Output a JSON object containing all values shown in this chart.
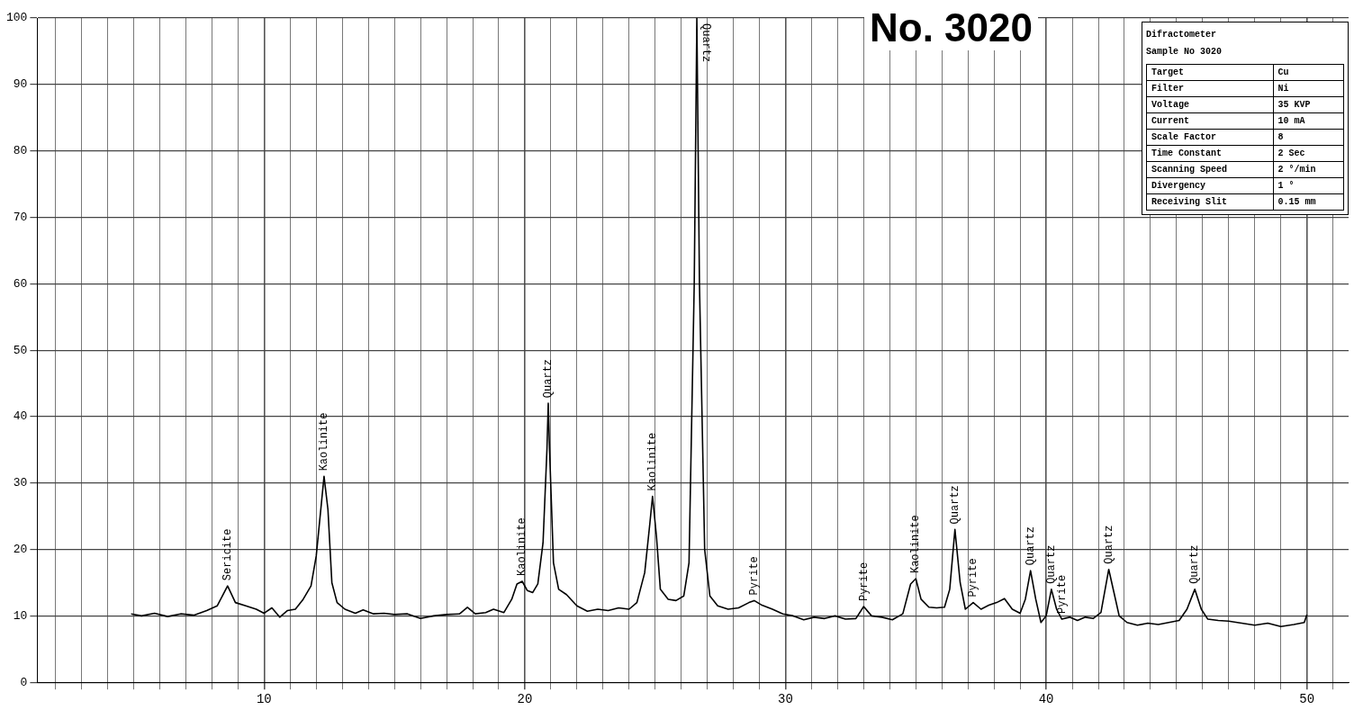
{
  "chart_data": {
    "type": "line",
    "title": "No. 3020",
    "x": [
      4.9,
      5.3,
      5.8,
      6.3,
      6.8,
      7.3,
      7.8,
      8.2,
      8.6,
      8.9,
      9.3,
      9.7,
      10.0,
      10.3,
      10.6,
      10.9,
      11.2,
      11.5,
      11.8,
      12.0,
      12.2,
      12.3,
      12.45,
      12.6,
      12.8,
      13.1,
      13.5,
      13.8,
      14.2,
      14.6,
      15.0,
      15.5,
      16.0,
      16.5,
      17.0,
      17.5,
      17.8,
      18.1,
      18.5,
      18.8,
      19.2,
      19.5,
      19.7,
      19.9,
      20.1,
      20.3,
      20.5,
      20.7,
      20.85,
      20.9,
      20.95,
      21.1,
      21.3,
      21.6,
      22.0,
      22.4,
      22.8,
      23.2,
      23.6,
      24.0,
      24.3,
      24.6,
      24.8,
      24.9,
      25.05,
      25.2,
      25.5,
      25.8,
      26.1,
      26.3,
      26.5,
      26.6,
      26.7,
      26.9,
      27.1,
      27.4,
      27.8,
      28.2,
      28.6,
      28.8,
      29.1,
      29.5,
      29.9,
      30.3,
      30.7,
      31.1,
      31.5,
      31.9,
      32.3,
      32.7,
      33.0,
      33.3,
      33.7,
      34.1,
      34.5,
      34.8,
      35.0,
      35.2,
      35.5,
      35.8,
      36.1,
      36.3,
      36.5,
      36.7,
      36.9,
      37.2,
      37.5,
      37.8,
      38.1,
      38.4,
      38.7,
      39.0,
      39.2,
      39.4,
      39.6,
      39.8,
      40.0,
      40.2,
      40.4,
      40.6,
      40.9,
      41.2,
      41.5,
      41.8,
      42.1,
      42.4,
      42.6,
      42.8,
      43.1,
      43.5,
      43.9,
      44.3,
      44.7,
      45.1,
      45.4,
      45.7,
      45.95,
      46.2,
      46.6,
      47.0,
      47.5,
      48.0,
      48.5,
      49.0,
      49.5,
      49.9,
      50.0
    ],
    "series": [
      {
        "color": "#000000",
        "values": [
          10.3,
          10.0,
          10.4,
          9.9,
          10.3,
          10.1,
          10.8,
          11.5,
          14.5,
          12.0,
          11.5,
          11.0,
          10.4,
          11.2,
          9.8,
          10.8,
          11.0,
          12.5,
          14.5,
          19.0,
          27.0,
          31.0,
          26.0,
          15.0,
          12.0,
          11.0,
          10.4,
          10.9,
          10.3,
          10.4,
          10.2,
          10.3,
          9.6,
          10.0,
          10.2,
          10.3,
          11.3,
          10.3,
          10.5,
          11.0,
          10.5,
          12.5,
          14.8,
          15.2,
          13.8,
          13.5,
          14.8,
          21.0,
          35.0,
          42.0,
          35.0,
          18.0,
          14.0,
          13.2,
          11.5,
          10.7,
          11.0,
          10.8,
          11.2,
          11.0,
          12.0,
          16.5,
          24.0,
          28.0,
          22.0,
          14.0,
          12.5,
          12.3,
          13.0,
          18.0,
          60.0,
          100,
          60.0,
          20.0,
          13.0,
          11.5,
          11.0,
          11.2,
          12.0,
          12.3,
          11.6,
          11.0,
          10.3,
          10.0,
          9.4,
          9.8,
          9.6,
          10.0,
          9.5,
          9.6,
          11.4,
          10.0,
          9.8,
          9.4,
          10.3,
          14.8,
          15.6,
          12.5,
          11.3,
          11.2,
          11.3,
          14.0,
          23.0,
          15.0,
          11.0,
          12.0,
          11.0,
          11.6,
          12.0,
          12.6,
          11.0,
          10.4,
          12.5,
          16.8,
          12.5,
          9.0,
          10.0,
          14.0,
          11.0,
          9.5,
          9.8,
          9.3,
          9.8,
          9.6,
          10.5,
          17.0,
          13.5,
          10.0,
          9.0,
          8.6,
          8.9,
          8.7,
          9.0,
          9.3,
          11.0,
          14.0,
          11.0,
          9.5,
          9.3,
          9.2,
          8.9,
          8.6,
          8.9,
          8.4,
          8.7,
          9.0,
          10.2
        ]
      }
    ],
    "xlim": [
      1.3,
      51.6
    ],
    "xticks": [
      {
        "value": 2,
        "label": null
      },
      {
        "value": 3,
        "label": null
      },
      {
        "value": 4,
        "label": null
      },
      {
        "value": 5,
        "label": null
      },
      {
        "value": 6,
        "label": null
      },
      {
        "value": 7,
        "label": null
      },
      {
        "value": 8,
        "label": null
      },
      {
        "value": 9,
        "label": null
      },
      10,
      {
        "value": 11,
        "label": null
      },
      {
        "value": 12,
        "label": null
      },
      {
        "value": 13,
        "label": null
      },
      {
        "value": 14,
        "label": null
      },
      {
        "value": 15,
        "label": null
      },
      {
        "value": 16,
        "label": null
      },
      {
        "value": 17,
        "label": null
      },
      {
        "value": 18,
        "label": null
      },
      {
        "value": 19,
        "label": null
      },
      20,
      {
        "value": 21,
        "label": null
      },
      {
        "value": 22,
        "label": null
      },
      {
        "value": 23,
        "label": null
      },
      {
        "value": 24,
        "label": null
      },
      {
        "value": 25,
        "label": null
      },
      {
        "value": 26,
        "label": null
      },
      {
        "value": 27,
        "label": null
      },
      {
        "value": 28,
        "label": null
      },
      {
        "value": 29,
        "label": null
      },
      30,
      {
        "value": 31,
        "label": null
      },
      {
        "value": 32,
        "label": null
      },
      {
        "value": 33,
        "label": null
      },
      {
        "value": 34,
        "label": null
      },
      {
        "value": 35,
        "label": null
      },
      {
        "value": 36,
        "label": null
      },
      {
        "value": 37,
        "label": null
      },
      {
        "value": 38,
        "label": null
      },
      {
        "value": 39,
        "label": null
      },
      40,
      {
        "value": 41,
        "label": null
      },
      {
        "value": 42,
        "label": null
      },
      {
        "value": 43,
        "label": null
      },
      {
        "value": 44,
        "label": null
      },
      {
        "value": 45,
        "label": null
      },
      {
        "value": 46,
        "label": null
      },
      {
        "value": 47,
        "label": null
      },
      {
        "value": 48,
        "label": null
      },
      {
        "value": 49,
        "label": null
      },
      50,
      {
        "value": 51,
        "label": null
      }
    ],
    "ylim": [
      0,
      100
    ],
    "yticks": [
      0,
      10,
      20,
      30,
      40,
      50,
      60,
      70,
      80,
      90,
      100
    ],
    "grid": true,
    "marker": "none",
    "line_style": "solid",
    "annotations": [
      {
        "text": "Sericite",
        "x": 8.6,
        "y": 14.5
      },
      {
        "text": "Kaolinite",
        "x": 12.3,
        "y": 31.0
      },
      {
        "text": "Kaolinite",
        "x": 19.9,
        "y": 15.2
      },
      {
        "text": "Quartz",
        "x": 20.9,
        "y": 42.0
      },
      {
        "text": "Kaolinite",
        "x": 24.9,
        "y": 28.0
      },
      {
        "text": "Quartz",
        "x": 26.6,
        "y": 100
      },
      {
        "text": "Pyrite",
        "x": 28.8,
        "y": 12.3
      },
      {
        "text": "Pyrite",
        "x": 33.0,
        "y": 11.4
      },
      {
        "text": "Kaolinite",
        "x": 35.0,
        "y": 15.6
      },
      {
        "text": "Quartz",
        "x": 36.5,
        "y": 23.0
      },
      {
        "text": "Pyrite",
        "x": 37.2,
        "y": 12.0
      },
      {
        "text": "Quartz",
        "x": 39.4,
        "y": 16.8
      },
      {
        "text": "Quartz",
        "x": 40.2,
        "y": 14.0
      },
      {
        "text": "Pyrite",
        "x": 40.6,
        "y": 9.5
      },
      {
        "text": "Quartz",
        "x": 42.4,
        "y": 17.0
      },
      {
        "text": "Quartz",
        "x": 45.7,
        "y": 14.0
      },
      "Difractometer",
      "Sample No 3020",
      "Target",
      "Cu",
      "Filter",
      "Ni",
      "Voltage",
      "35 KVP",
      "Current",
      "10 mA",
      "Scale Factor",
      "8",
      "Time Constant",
      "2 Sec",
      "Scanning Speed",
      "2 °/min",
      "Divergency",
      "1 °",
      "Receiving Slit",
      "0.15 mm"
    ]
  }
}
